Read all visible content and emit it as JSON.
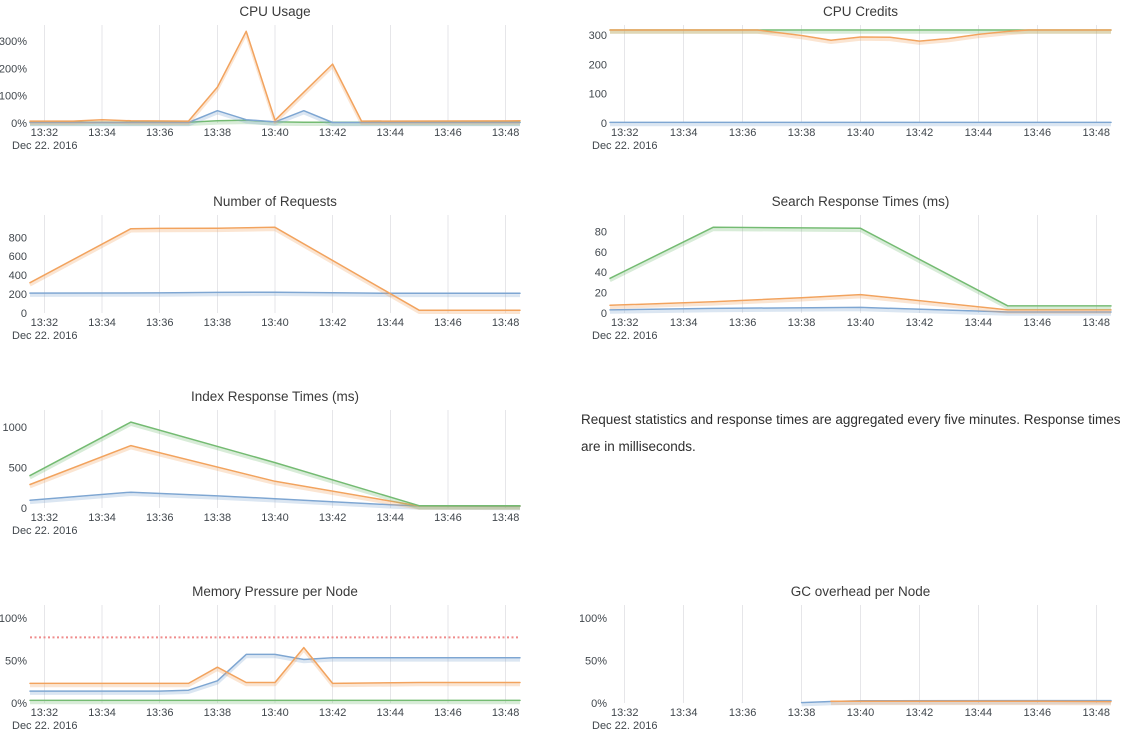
{
  "footnote": {
    "text": "Request statistics and response times are aggregated every five minutes. Response times are in milliseconds."
  },
  "palette": {
    "blue": "#7EA6D2",
    "orange": "#F2A35E",
    "green": "#74BB72",
    "red": "#ED8080",
    "grid": "#E6E6E9",
    "title_color": "#3A3A3A",
    "tick_color": "#41474D"
  },
  "chart_data": {
    "type": "line",
    "x_axis": {
      "tick_labels": [
        "13:32",
        "13:34",
        "13:36",
        "13:38",
        "13:40",
        "13:42",
        "13:44",
        "13:46",
        "13:48"
      ],
      "tick_minutes": [
        32,
        34,
        36,
        38,
        40,
        42,
        44,
        46,
        48
      ],
      "date_label": "Dec 22. 2016",
      "domain_minutes": [
        31.5,
        48.5
      ],
      "grid": "vertical-only"
    },
    "charts": [
      {
        "title": "CPU Usage",
        "ymax": 358,
        "y_ticks": [
          {
            "v": 0,
            "label": "0%"
          },
          {
            "v": 100,
            "label": "100%"
          },
          {
            "v": 200,
            "label": "200%"
          },
          {
            "v": 300,
            "label": "300%"
          }
        ],
        "series": [
          {
            "name": "green",
            "color": "green",
            "points": [
              [
                31.5,
                3
              ],
              [
                37,
                3
              ],
              [
                38,
                8
              ],
              [
                39,
                10
              ],
              [
                40,
                4
              ],
              [
                41,
                3
              ],
              [
                48.5,
                3
              ]
            ]
          },
          {
            "name": "blue",
            "color": "blue",
            "points": [
              [
                31.5,
                2
              ],
              [
                37,
                2
              ],
              [
                38,
                45
              ],
              [
                39,
                12
              ],
              [
                40,
                4
              ],
              [
                41,
                45
              ],
              [
                42,
                2
              ],
              [
                48.5,
                2
              ]
            ]
          },
          {
            "name": "orange",
            "color": "orange",
            "points": [
              [
                31.5,
                7
              ],
              [
                33,
                7
              ],
              [
                34,
                12
              ],
              [
                35,
                8
              ],
              [
                37,
                7
              ],
              [
                38,
                131
              ],
              [
                39,
                335
              ],
              [
                40,
                10
              ],
              [
                42,
                215
              ],
              [
                43,
                7
              ],
              [
                48.5,
                8
              ]
            ]
          }
        ]
      },
      {
        "title": "CPU Credits",
        "ymax": 335,
        "y_ticks": [
          {
            "v": 0,
            "label": "0"
          },
          {
            "v": 100,
            "label": "100"
          },
          {
            "v": 200,
            "label": "200"
          },
          {
            "v": 300,
            "label": "300"
          }
        ],
        "series": [
          {
            "name": "blue",
            "color": "blue",
            "points": [
              [
                31.5,
                2
              ],
              [
                48.5,
                2
              ]
            ]
          },
          {
            "name": "green",
            "color": "green",
            "points": [
              [
                31.5,
                318
              ],
              [
                48.5,
                318
              ]
            ]
          },
          {
            "name": "orange",
            "color": "orange",
            "points": [
              [
                31.5,
                318
              ],
              [
                36.5,
                318
              ],
              [
                38,
                299
              ],
              [
                39,
                283
              ],
              [
                40,
                294
              ],
              [
                41,
                293
              ],
              [
                42,
                280
              ],
              [
                43,
                289
              ],
              [
                44,
                303
              ],
              [
                45,
                313
              ],
              [
                45.7,
                318
              ],
              [
                48.5,
                318
              ]
            ]
          }
        ]
      },
      {
        "title": "Number of Requests",
        "ymax": 1035,
        "y_ticks": [
          {
            "v": 0,
            "label": "0"
          },
          {
            "v": 200,
            "label": "200"
          },
          {
            "v": 400,
            "label": "400"
          },
          {
            "v": 600,
            "label": "600"
          },
          {
            "v": 800,
            "label": "800"
          }
        ],
        "series": [
          {
            "name": "blue",
            "color": "blue",
            "points": [
              [
                31.5,
                210
              ],
              [
                36,
                212
              ],
              [
                38,
                218
              ],
              [
                40,
                220
              ],
              [
                42,
                214
              ],
              [
                44,
                208
              ],
              [
                48.5,
                208
              ]
            ]
          },
          {
            "name": "orange",
            "color": "orange",
            "points": [
              [
                31.5,
                320
              ],
              [
                35,
                890
              ],
              [
                36,
                893
              ],
              [
                38,
                895
              ],
              [
                40,
                905
              ],
              [
                45,
                30
              ],
              [
                48.5,
                30
              ]
            ]
          }
        ]
      },
      {
        "title": "Search Response Times (ms)",
        "ymax": 96,
        "y_ticks": [
          {
            "v": 0,
            "label": "0"
          },
          {
            "v": 20,
            "label": "20"
          },
          {
            "v": 40,
            "label": "40"
          },
          {
            "v": 60,
            "label": "60"
          },
          {
            "v": 80,
            "label": "80"
          }
        ],
        "series": [
          {
            "name": "blue",
            "color": "blue",
            "points": [
              [
                31.5,
                3
              ],
              [
                35,
                4.5
              ],
              [
                40,
                5.5
              ],
              [
                45,
                1
              ],
              [
                48.5,
                1
              ]
            ]
          },
          {
            "name": "orange",
            "color": "orange",
            "points": [
              [
                31.5,
                7.5
              ],
              [
                35,
                11
              ],
              [
                38,
                15
              ],
              [
                40,
                18
              ],
              [
                45,
                3
              ],
              [
                48.5,
                3
              ]
            ]
          },
          {
            "name": "green",
            "color": "green",
            "points": [
              [
                31.5,
                34
              ],
              [
                35,
                84
              ],
              [
                40,
                83
              ],
              [
                45,
                7
              ],
              [
                48.5,
                7
              ]
            ]
          }
        ]
      },
      {
        "title": "Index Response Times (ms)",
        "ymax": 1210,
        "y_ticks": [
          {
            "v": 0,
            "label": "0"
          },
          {
            "v": 500,
            "label": "500"
          },
          {
            "v": 1000,
            "label": "1000"
          }
        ],
        "series": [
          {
            "name": "blue",
            "color": "blue",
            "points": [
              [
                31.5,
                95
              ],
              [
                35,
                195
              ],
              [
                38,
                150
              ],
              [
                40,
                115
              ],
              [
                44,
                40
              ],
              [
                45,
                25
              ],
              [
                48.5,
                20
              ]
            ]
          },
          {
            "name": "orange",
            "color": "orange",
            "points": [
              [
                31.5,
                290
              ],
              [
                35,
                770
              ],
              [
                40,
                330
              ],
              [
                45,
                25
              ],
              [
                48.5,
                25
              ]
            ]
          },
          {
            "name": "green",
            "color": "green",
            "points": [
              [
                31.5,
                400
              ],
              [
                35,
                1060
              ],
              [
                40,
                560
              ],
              [
                45,
                28
              ],
              [
                48.5,
                28
              ]
            ]
          }
        ]
      },
      {
        "title": "Memory Pressure per Node",
        "ymax": 115,
        "y_ticks": [
          {
            "v": 0,
            "label": "0%"
          },
          {
            "v": 50,
            "label": "50%"
          },
          {
            "v": 100,
            "label": "100%"
          }
        ],
        "series": [
          {
            "name": "green",
            "color": "green",
            "points": [
              [
                31.5,
                3
              ],
              [
                48.5,
                3
              ]
            ]
          },
          {
            "name": "blue",
            "color": "blue",
            "points": [
              [
                31.5,
                14
              ],
              [
                36,
                14
              ],
              [
                37,
                15
              ],
              [
                38,
                26
              ],
              [
                39,
                57
              ],
              [
                40,
                57
              ],
              [
                41,
                51
              ],
              [
                42,
                53
              ],
              [
                48.5,
                53
              ]
            ]
          },
          {
            "name": "orange",
            "color": "orange",
            "points": [
              [
                31.5,
                23
              ],
              [
                37,
                23
              ],
              [
                38,
                42
              ],
              [
                39,
                24
              ],
              [
                40,
                24
              ],
              [
                41,
                65
              ],
              [
                42,
                23
              ],
              [
                45,
                24
              ],
              [
                48.5,
                24
              ]
            ]
          },
          {
            "name": "threshold",
            "color": "red",
            "dashed": true,
            "points": [
              [
                31.5,
                77
              ],
              [
                48.5,
                77
              ]
            ]
          }
        ]
      },
      {
        "title": "GC overhead per Node",
        "ymax": 115,
        "y_ticks": [
          {
            "v": 0,
            "label": "0%"
          },
          {
            "v": 50,
            "label": "50%"
          },
          {
            "v": 100,
            "label": "100%"
          }
        ],
        "series": [
          {
            "name": "blue",
            "color": "blue",
            "points": [
              [
                38,
                0.5
              ],
              [
                39,
                1.8
              ],
              [
                40,
                2.6
              ],
              [
                48.5,
                2.8
              ]
            ]
          },
          {
            "name": "orange",
            "color": "orange",
            "points": [
              [
                39,
                2
              ],
              [
                46,
                2
              ],
              [
                48.5,
                1.6
              ]
            ]
          }
        ]
      }
    ]
  }
}
